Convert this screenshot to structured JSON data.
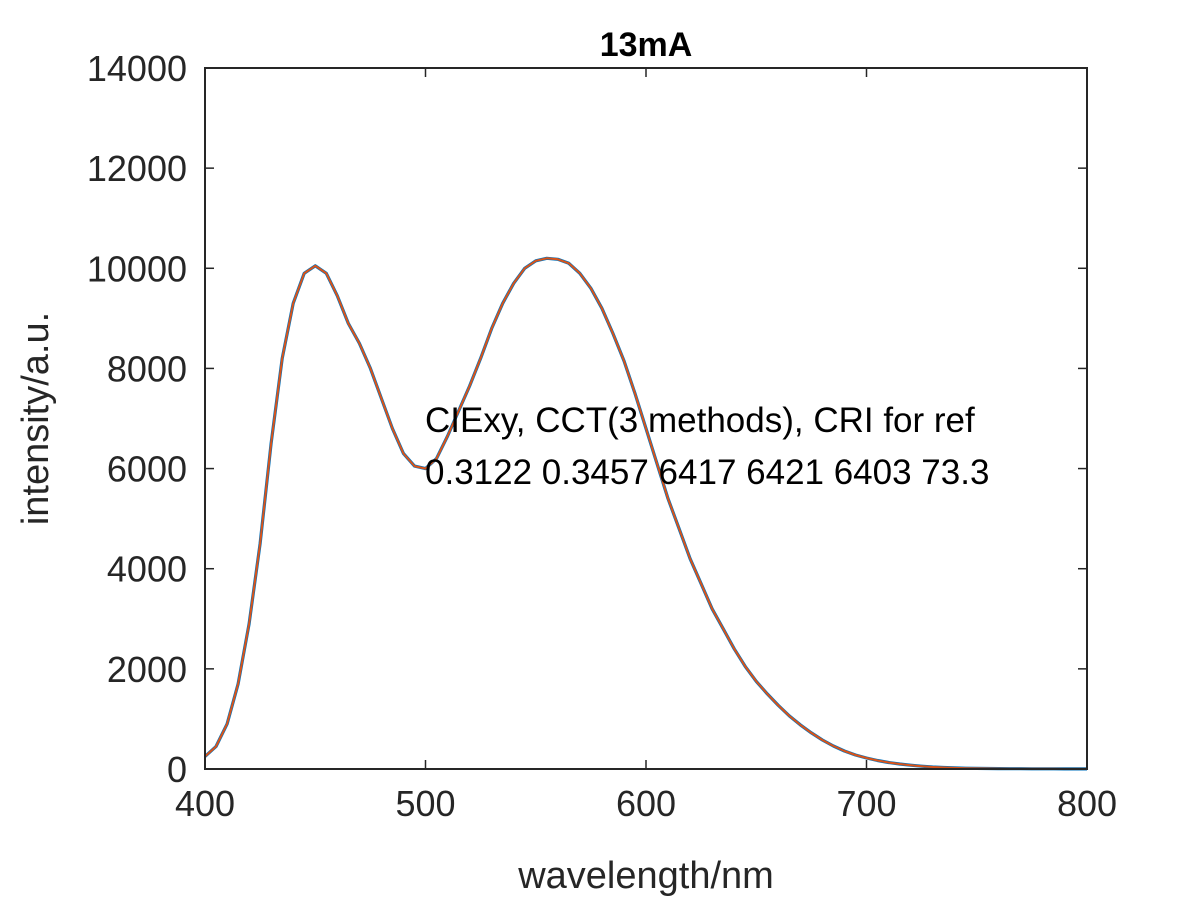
{
  "chart_data": {
    "type": "line",
    "title": "13mA",
    "xlabel": "wavelength/nm",
    "ylabel": "intensity/a.u.",
    "xlim": [
      400,
      800
    ],
    "ylim": [
      0,
      14000
    ],
    "xticks": [
      "400",
      "500",
      "600",
      "700",
      "800"
    ],
    "yticks": [
      "0",
      "2000",
      "4000",
      "6000",
      "8000",
      "10000",
      "12000",
      "14000"
    ],
    "grid": false,
    "colors": {
      "measured": "#0072BD",
      "fit": "#D95319",
      "axes": "#262626"
    },
    "annotations": [
      "CIExy, CCT(3 methods), CRI for ref",
      "0.3122 0.3457 6417 6421 6403 73.3"
    ],
    "series": [
      {
        "style": "measured",
        "x": [
          400,
          405,
          410,
          415,
          420,
          425,
          430,
          435,
          440,
          445,
          450,
          455,
          460,
          465,
          470,
          475,
          480,
          485,
          490,
          495,
          500,
          505,
          510,
          515,
          520,
          525,
          530,
          535,
          540,
          545,
          550,
          555,
          560,
          565,
          570,
          575,
          580,
          585,
          590,
          595,
          600,
          605,
          610,
          615,
          620,
          625,
          630,
          635,
          640,
          645,
          650,
          655,
          660,
          665,
          670,
          675,
          680,
          685,
          690,
          695,
          700,
          705,
          710,
          715,
          720,
          725,
          730,
          735,
          740,
          745,
          750,
          755,
          760,
          765,
          770,
          775,
          780,
          785,
          790,
          795,
          800
        ],
        "y": [
          250,
          450,
          900,
          1700,
          2900,
          4500,
          6500,
          8200,
          9300,
          9900,
          10050,
          9900,
          9450,
          8900,
          8500,
          8000,
          7400,
          6800,
          6300,
          6050,
          6000,
          6200,
          6650,
          7150,
          7650,
          8200,
          8800,
          9300,
          9700,
          10000,
          10150,
          10200,
          10180,
          10100,
          9900,
          9600,
          9200,
          8700,
          8150,
          7500,
          6800,
          6100,
          5400,
          4800,
          4200,
          3700,
          3200,
          2800,
          2400,
          2050,
          1750,
          1500,
          1270,
          1060,
          880,
          720,
          580,
          460,
          360,
          280,
          220,
          170,
          130,
          100,
          75,
          55,
          40,
          30,
          22,
          16,
          12,
          10,
          8,
          6,
          5,
          4,
          3,
          3,
          2,
          2,
          2
        ]
      },
      {
        "style": "fit",
        "x": [
          400,
          405,
          410,
          415,
          420,
          425,
          430,
          435,
          440,
          445,
          450,
          455,
          460,
          465,
          470,
          475,
          480,
          485,
          490,
          495,
          500,
          505,
          510,
          515,
          520,
          525,
          530,
          535,
          540,
          545,
          550,
          555,
          560,
          565,
          570,
          575,
          580,
          585,
          590,
          595,
          600,
          605,
          610,
          615,
          620,
          625,
          630,
          635,
          640,
          645,
          650,
          655,
          660,
          665,
          670,
          675,
          680,
          685,
          690,
          695,
          700,
          705,
          710,
          715,
          720,
          725,
          730,
          735,
          740,
          745,
          750,
          755,
          760,
          765,
          770,
          775,
          780,
          785,
          790,
          795,
          800
        ],
        "y": [
          250,
          450,
          900,
          1700,
          2900,
          4500,
          6500,
          8200,
          9300,
          9900,
          10050,
          9900,
          9450,
          8900,
          8500,
          8000,
          7400,
          6800,
          6300,
          6050,
          6000,
          6200,
          6650,
          7150,
          7650,
          8200,
          8800,
          9300,
          9700,
          10000,
          10150,
          10200,
          10180,
          10100,
          9900,
          9600,
          9200,
          8700,
          8150,
          7500,
          6800,
          6100,
          5400,
          4800,
          4200,
          3700,
          3200,
          2800,
          2400,
          2050,
          1750,
          1500,
          1270,
          1060,
          880,
          720,
          580,
          460,
          360,
          280,
          220,
          170,
          130,
          100,
          75,
          55,
          40,
          30,
          22,
          16,
          12,
          10,
          8,
          6,
          5,
          4,
          3,
          3,
          2,
          2,
          2
        ]
      }
    ]
  }
}
